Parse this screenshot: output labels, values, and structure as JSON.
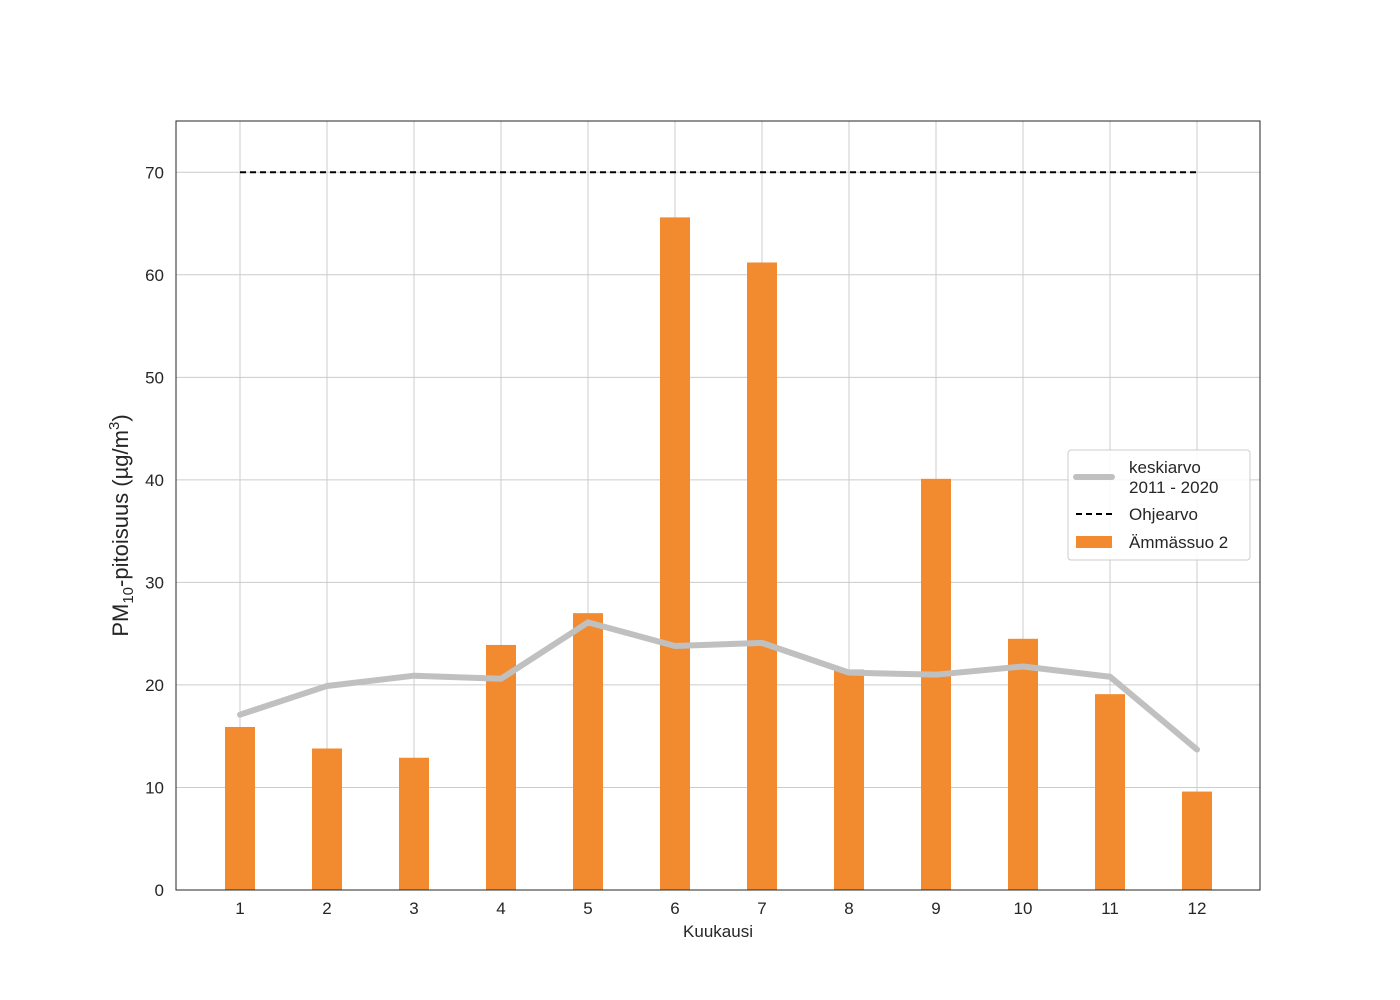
{
  "chart_data": {
    "type": "bar",
    "categories": [
      "1",
      "2",
      "3",
      "4",
      "5",
      "6",
      "7",
      "8",
      "9",
      "10",
      "11",
      "12"
    ],
    "series": [
      {
        "name": "Ämmässuo 2",
        "type": "bar",
        "color": "#f28a30",
        "values": [
          15.9,
          13.8,
          12.9,
          23.9,
          27.0,
          65.6,
          61.2,
          21.5,
          40.1,
          24.5,
          19.1,
          9.6
        ]
      },
      {
        "name": "keskiarvo\n2011 - 2020",
        "type": "line",
        "color": "#c0c0c0",
        "values": [
          17.1,
          19.9,
          20.9,
          20.6,
          26.1,
          23.8,
          24.1,
          21.2,
          21.0,
          21.8,
          20.8,
          13.7
        ]
      },
      {
        "name": "Ohjearvo",
        "type": "line",
        "style": "dashed",
        "color": "#000000",
        "values": [
          70,
          70,
          70,
          70,
          70,
          70,
          70,
          70,
          70,
          70,
          70,
          70
        ]
      }
    ],
    "xlabel": "Kuukausi",
    "ylabel": {
      "prefix": "PM",
      "sub": "10",
      "middle": "-pitoisuus (µg/m",
      "sup": "3",
      "suffix": ")"
    },
    "ylim": [
      0,
      75
    ],
    "yticks": [
      0,
      10,
      20,
      30,
      40,
      50,
      60,
      70
    ],
    "grid": true,
    "legend_position": "center-right",
    "legend_order": [
      "keskiarvo\n2011 - 2020",
      "Ohjearvo",
      "Ämmässuo 2"
    ]
  }
}
